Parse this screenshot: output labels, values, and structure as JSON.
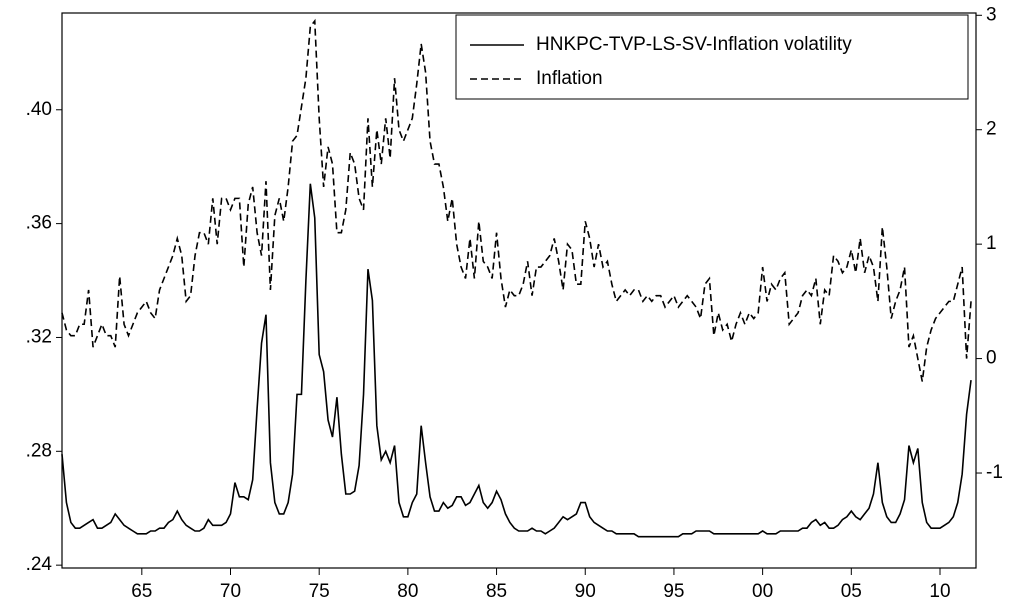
{
  "chart_data": {
    "type": "line",
    "x": [
      1960.5,
      1960.75,
      1961,
      1961.25,
      1961.5,
      1961.75,
      1962,
      1962.25,
      1962.5,
      1962.75,
      1963,
      1963.25,
      1963.5,
      1963.75,
      1964,
      1964.25,
      1964.5,
      1964.75,
      1965,
      1965.25,
      1965.5,
      1965.75,
      1966,
      1966.25,
      1966.5,
      1966.75,
      1967,
      1967.25,
      1967.5,
      1967.75,
      1968,
      1968.25,
      1968.5,
      1968.75,
      1969,
      1969.25,
      1969.5,
      1969.75,
      1970,
      1970.25,
      1970.5,
      1970.75,
      1971,
      1971.25,
      1971.5,
      1971.75,
      1972,
      1972.25,
      1972.5,
      1972.75,
      1973,
      1973.25,
      1973.5,
      1973.75,
      1974,
      1974.25,
      1974.5,
      1974.75,
      1975,
      1975.25,
      1975.5,
      1975.75,
      1976,
      1976.25,
      1976.5,
      1976.75,
      1977,
      1977.25,
      1977.5,
      1977.75,
      1978,
      1978.25,
      1978.5,
      1978.75,
      1979,
      1979.25,
      1979.5,
      1979.75,
      1980,
      1980.25,
      1980.5,
      1980.75,
      1981,
      1981.25,
      1981.5,
      1981.75,
      1982,
      1982.25,
      1982.5,
      1982.75,
      1983,
      1983.25,
      1983.5,
      1983.75,
      1984,
      1984.25,
      1984.5,
      1984.75,
      1985,
      1985.25,
      1985.5,
      1985.75,
      1986,
      1986.25,
      1986.5,
      1986.75,
      1987,
      1987.25,
      1987.5,
      1987.75,
      1988,
      1988.25,
      1988.5,
      1988.75,
      1989,
      1989.25,
      1989.5,
      1989.75,
      1990,
      1990.25,
      1990.5,
      1990.75,
      1991,
      1991.25,
      1991.5,
      1991.75,
      1992,
      1992.25,
      1992.5,
      1992.75,
      1993,
      1993.25,
      1993.5,
      1993.75,
      1994,
      1994.25,
      1994.5,
      1994.75,
      1995,
      1995.25,
      1995.5,
      1995.75,
      1996,
      1996.25,
      1996.5,
      1996.75,
      1997,
      1997.25,
      1997.5,
      1997.75,
      1998,
      1998.25,
      1998.5,
      1998.75,
      1999,
      1999.25,
      1999.5,
      1999.75,
      2000,
      2000.25,
      2000.5,
      2000.75,
      2001,
      2001.25,
      2001.5,
      2001.75,
      2002,
      2002.25,
      2002.5,
      2002.75,
      2003,
      2003.25,
      2003.5,
      2003.75,
      2004,
      2004.25,
      2004.5,
      2004.75,
      2005,
      2005.25,
      2005.5,
      2005.75,
      2006,
      2006.25,
      2006.5,
      2006.75,
      2007,
      2007.25,
      2007.5,
      2007.75,
      2008,
      2008.25,
      2008.5,
      2008.75,
      2009,
      2009.25,
      2009.5,
      2009.75,
      2010,
      2010.25,
      2010.5,
      2010.75,
      2011,
      2011.25,
      2011.5,
      2011.75
    ],
    "series": [
      {
        "name": "HNKPC-TVP-LS-SV-Inflation volatility",
        "color": "#000000",
        "line_style": "solid",
        "axis": "y",
        "values": [
          0.279,
          0.262,
          0.255,
          0.253,
          0.253,
          0.254,
          0.255,
          0.256,
          0.253,
          0.253,
          0.254,
          0.255,
          0.258,
          0.256,
          0.254,
          0.253,
          0.252,
          0.251,
          0.251,
          0.251,
          0.252,
          0.252,
          0.253,
          0.253,
          0.255,
          0.256,
          0.259,
          0.256,
          0.254,
          0.253,
          0.252,
          0.252,
          0.253,
          0.256,
          0.254,
          0.254,
          0.254,
          0.255,
          0.258,
          0.269,
          0.264,
          0.264,
          0.263,
          0.27,
          0.295,
          0.318,
          0.328,
          0.276,
          0.262,
          0.258,
          0.258,
          0.262,
          0.272,
          0.3,
          0.3,
          0.34,
          0.374,
          0.362,
          0.314,
          0.308,
          0.291,
          0.285,
          0.299,
          0.279,
          0.265,
          0.265,
          0.266,
          0.275,
          0.3,
          0.344,
          0.333,
          0.289,
          0.277,
          0.28,
          0.276,
          0.282,
          0.262,
          0.257,
          0.257,
          0.262,
          0.265,
          0.289,
          0.276,
          0.264,
          0.259,
          0.259,
          0.262,
          0.26,
          0.261,
          0.264,
          0.264,
          0.261,
          0.262,
          0.265,
          0.268,
          0.262,
          0.26,
          0.262,
          0.266,
          0.263,
          0.258,
          0.255,
          0.253,
          0.252,
          0.252,
          0.252,
          0.253,
          0.252,
          0.252,
          0.251,
          0.252,
          0.253,
          0.255,
          0.257,
          0.256,
          0.257,
          0.258,
          0.262,
          0.262,
          0.257,
          0.255,
          0.254,
          0.253,
          0.252,
          0.252,
          0.251,
          0.251,
          0.251,
          0.251,
          0.251,
          0.25,
          0.25,
          0.25,
          0.25,
          0.25,
          0.25,
          0.25,
          0.25,
          0.25,
          0.25,
          0.251,
          0.251,
          0.251,
          0.252,
          0.252,
          0.252,
          0.252,
          0.251,
          0.251,
          0.251,
          0.251,
          0.251,
          0.251,
          0.251,
          0.251,
          0.251,
          0.251,
          0.251,
          0.252,
          0.251,
          0.251,
          0.251,
          0.252,
          0.252,
          0.252,
          0.252,
          0.252,
          0.253,
          0.253,
          0.255,
          0.256,
          0.254,
          0.255,
          0.253,
          0.253,
          0.254,
          0.256,
          0.257,
          0.259,
          0.257,
          0.256,
          0.258,
          0.26,
          0.265,
          0.276,
          0.262,
          0.257,
          0.255,
          0.255,
          0.258,
          0.263,
          0.282,
          0.276,
          0.281,
          0.262,
          0.255,
          0.253,
          0.253,
          0.253,
          0.254,
          0.255,
          0.257,
          0.262,
          0.272,
          0.293,
          0.305
        ]
      },
      {
        "name": "Inflation",
        "color": "#000000",
        "line_style": "dashed",
        "axis": "y2",
        "values": [
          0.4,
          0.25,
          0.2,
          0.2,
          0.3,
          0.3,
          0.6,
          0.1,
          0.2,
          0.3,
          0.2,
          0.2,
          0.1,
          0.72,
          0.3,
          0.2,
          0.3,
          0.4,
          0.45,
          0.5,
          0.4,
          0.35,
          0.6,
          0.7,
          0.8,
          0.9,
          1.05,
          0.9,
          0.5,
          0.55,
          0.9,
          1.1,
          1.1,
          1.0,
          1.4,
          1.0,
          1.4,
          1.4,
          1.3,
          1.4,
          1.4,
          0.8,
          1.35,
          1.5,
          1.1,
          0.9,
          1.55,
          0.6,
          1.25,
          1.4,
          1.2,
          1.5,
          1.9,
          1.95,
          2.2,
          2.45,
          2.9,
          2.95,
          2.1,
          1.5,
          1.85,
          1.7,
          1.1,
          1.1,
          1.3,
          1.8,
          1.7,
          1.4,
          1.3,
          2.1,
          1.5,
          2.0,
          1.7,
          2.1,
          1.75,
          2.45,
          2.0,
          1.9,
          2.0,
          2.1,
          2.4,
          2.75,
          2.5,
          1.9,
          1.7,
          1.7,
          1.5,
          1.2,
          1.4,
          1.0,
          0.8,
          0.7,
          1.05,
          0.7,
          1.2,
          0.85,
          0.8,
          0.7,
          1.1,
          0.7,
          0.45,
          0.6,
          0.55,
          0.55,
          0.65,
          0.85,
          0.55,
          0.8,
          0.8,
          0.85,
          0.9,
          1.05,
          0.85,
          0.6,
          1.0,
          0.95,
          0.65,
          0.65,
          1.2,
          1.05,
          0.8,
          1.0,
          0.8,
          0.85,
          0.65,
          0.5,
          0.55,
          0.6,
          0.55,
          0.6,
          0.6,
          0.5,
          0.55,
          0.5,
          0.55,
          0.55,
          0.45,
          0.5,
          0.55,
          0.45,
          0.5,
          0.55,
          0.5,
          0.45,
          0.35,
          0.65,
          0.7,
          0.2,
          0.4,
          0.25,
          0.3,
          0.15,
          0.3,
          0.4,
          0.3,
          0.4,
          0.35,
          0.4,
          0.8,
          0.5,
          0.65,
          0.6,
          0.7,
          0.75,
          0.3,
          0.35,
          0.4,
          0.55,
          0.6,
          0.55,
          0.7,
          0.3,
          0.6,
          0.55,
          0.9,
          0.85,
          0.75,
          0.8,
          0.95,
          0.75,
          1.05,
          0.75,
          0.9,
          0.8,
          0.5,
          1.15,
          0.8,
          0.35,
          0.5,
          0.6,
          0.8,
          0.1,
          0.2,
          0.0,
          -0.2,
          0.1,
          0.25,
          0.35,
          0.4,
          0.45,
          0.5,
          0.5,
          0.65,
          0.8,
          0.0,
          0.5
        ]
      }
    ],
    "xlim": [
      1960.5,
      2012.03
    ],
    "xticks": [
      {
        "value": 1965,
        "label": "65"
      },
      {
        "value": 1970,
        "label": "70"
      },
      {
        "value": 1975,
        "label": "75"
      },
      {
        "value": 1980,
        "label": "80"
      },
      {
        "value": 1985,
        "label": "85"
      },
      {
        "value": 1990,
        "label": "90"
      },
      {
        "value": 1995,
        "label": "95"
      },
      {
        "value": 2000,
        "label": "00"
      },
      {
        "value": 2005,
        "label": "05"
      },
      {
        "value": 2010,
        "label": "10"
      }
    ],
    "ylim": [
      0.239,
      0.434
    ],
    "yticks": [
      {
        "value": 0.24,
        "label": ".24"
      },
      {
        "value": 0.28,
        "label": ".28"
      },
      {
        "value": 0.32,
        "label": ".32"
      },
      {
        "value": 0.36,
        "label": ".36"
      },
      {
        "value": 0.4,
        "label": ".40"
      }
    ],
    "y2lim": [
      -1.83,
      3.02
    ],
    "y2ticks": [
      -1,
      0,
      1,
      2,
      3
    ],
    "legend": "top-right",
    "grid": false
  }
}
